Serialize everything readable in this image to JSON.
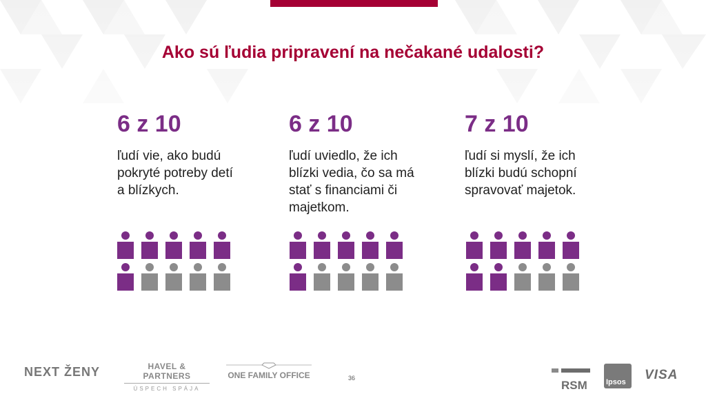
{
  "slide": {
    "title": "Ako sú ľudia pripravení na nečakané udalosti?",
    "page_number": "36"
  },
  "stats": [
    {
      "value": "6 z 10",
      "description": "ľudí vie, ako budú pokryté potreby detí a blízkych.",
      "highlighted": 6,
      "total": 10
    },
    {
      "value": "6 z 10",
      "description": "ľudí uviedlo, že ich blízki vedia, čo sa má stať s financiami či majetkom.",
      "highlighted": 6,
      "total": 10
    },
    {
      "value": "7 z 10",
      "description": "ľudí si myslí, že ich blízki budú schopní spravovať majetok.",
      "highlighted": 7,
      "total": 10
    }
  ],
  "footer": {
    "logo_next_zeny": "NEXT ŽENY",
    "logo_havel_main": "HAVEL & PARTNERS",
    "logo_havel_sub": "ÚSPECH SPÁJA",
    "logo_one_family_office": "ONE FAMILY OFFICE",
    "logo_rsm": "RSM",
    "logo_ipsos": "Ipsos",
    "logo_visa": "VISA"
  },
  "colors": {
    "accent": "#a50034",
    "highlight": "#7b2d86",
    "muted": "#8c8c8c"
  }
}
